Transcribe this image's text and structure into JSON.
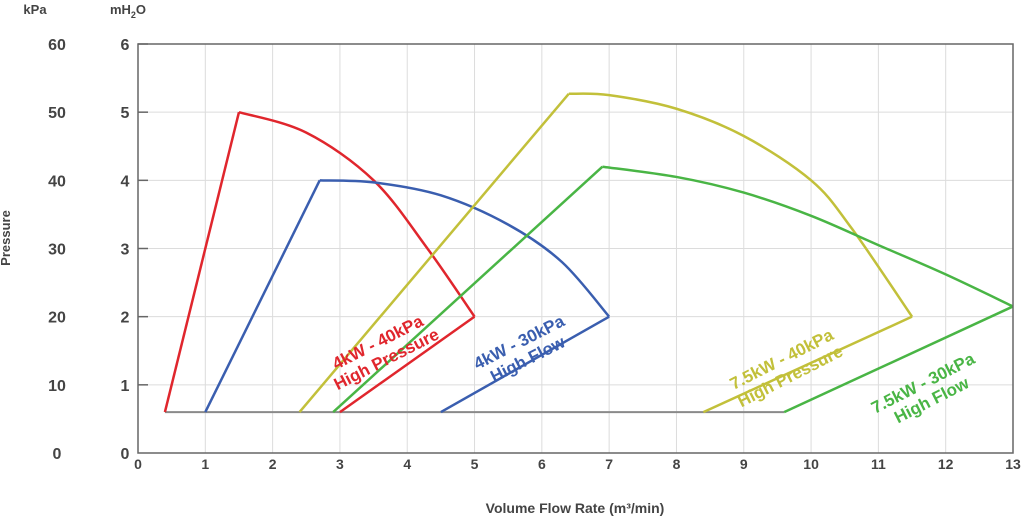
{
  "chart_data": {
    "type": "line",
    "title": "",
    "xlabel": "Volume Flow Rate (m³/min)",
    "ylabel": "Pressure",
    "y_unit_left": "kPa",
    "y_unit_right_prefix": "mH",
    "y_unit_right_sub": "2",
    "y_unit_right_suffix": "O",
    "xlim": [
      0,
      13
    ],
    "ylim": [
      0,
      6
    ],
    "grid": true,
    "x_ticks": [
      "0",
      "1",
      "2",
      "3",
      "4",
      "5",
      "6",
      "7",
      "8",
      "9",
      "10",
      "11",
      "12",
      "13"
    ],
    "y_ticks_mh2o": [
      "0",
      "1",
      "2",
      "3",
      "4",
      "5",
      "6"
    ],
    "y_ticks_kpa": [
      "0",
      "10",
      "20",
      "30",
      "40",
      "50",
      "60"
    ],
    "baseline": {
      "x": [
        0.4,
        9.6
      ],
      "y": 0.6,
      "color": "#8a8a8a"
    },
    "series": [
      {
        "name": "4kW - 40kPa High Pressure",
        "label_lines": [
          "4kW - 40kPa",
          "High Pressure"
        ],
        "color": "#e0262d",
        "rise": [
          [
            0.4,
            0.6
          ],
          [
            1.5,
            5.0
          ]
        ],
        "curve": [
          [
            1.5,
            5.0
          ],
          [
            2.5,
            4.7
          ],
          [
            3.5,
            4.0
          ],
          [
            4.3,
            3.0
          ],
          [
            5.0,
            2.0
          ]
        ],
        "fall": [
          [
            5.0,
            2.0
          ],
          [
            3.0,
            0.6
          ]
        ],
        "label_at": [
          3.6,
          1.55
        ]
      },
      {
        "name": "4kW - 30kPa High Flow",
        "label_lines": [
          "4kW - 30kPa",
          "High Flow"
        ],
        "color": "#3a5eaf",
        "rise": [
          [
            1.0,
            0.6
          ],
          [
            2.7,
            4.0
          ]
        ],
        "curve": [
          [
            2.7,
            4.0
          ],
          [
            3.5,
            3.97
          ],
          [
            4.5,
            3.78
          ],
          [
            5.5,
            3.35
          ],
          [
            6.3,
            2.8
          ],
          [
            7.0,
            2.0
          ]
        ],
        "fall": [
          [
            7.0,
            2.0
          ],
          [
            4.5,
            0.6
          ]
        ],
        "label_at": [
          5.7,
          1.55
        ]
      },
      {
        "name": "7.5kW - 40kPa High Pressure",
        "label_lines": [
          "7.5kW - 40kPa",
          "High Pressure"
        ],
        "color": "#c2c03a",
        "rise": [
          [
            2.4,
            0.6
          ],
          [
            6.4,
            5.27
          ]
        ],
        "curve": [
          [
            6.4,
            5.27
          ],
          [
            7.0,
            5.25
          ],
          [
            8.0,
            5.05
          ],
          [
            9.0,
            4.65
          ],
          [
            10.0,
            4.0
          ],
          [
            10.6,
            3.3
          ],
          [
            11.5,
            2.0
          ]
        ],
        "fall": [
          [
            11.5,
            2.0
          ],
          [
            8.4,
            0.6
          ]
        ],
        "label_at": [
          9.6,
          1.3
        ]
      },
      {
        "name": "7.5kW - 30kPa High Flow",
        "label_lines": [
          "7.5kW - 30kPa",
          "High Flow"
        ],
        "color": "#49b545",
        "rise": [
          [
            2.9,
            0.6
          ],
          [
            6.9,
            4.2
          ]
        ],
        "curve": [
          [
            6.9,
            4.2
          ],
          [
            8.0,
            4.05
          ],
          [
            9.0,
            3.82
          ],
          [
            10.0,
            3.48
          ],
          [
            11.0,
            3.05
          ],
          [
            12.0,
            2.62
          ],
          [
            13.0,
            2.15
          ]
        ],
        "fall": [
          [
            13.0,
            2.15
          ],
          [
            9.6,
            0.6
          ]
        ],
        "label_at": [
          11.7,
          0.95
        ]
      }
    ]
  }
}
